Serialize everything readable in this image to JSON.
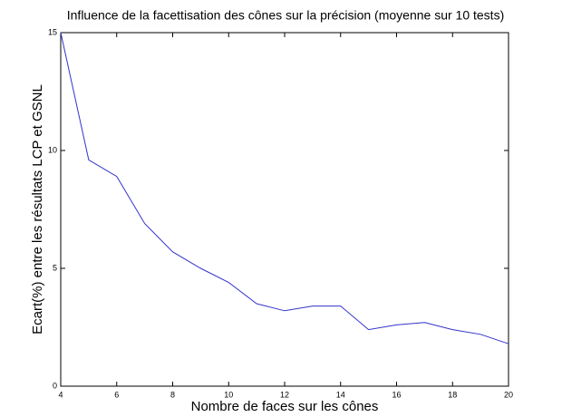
{
  "chart_data": {
    "type": "line",
    "title": "Influence de la facettisation des cônes sur la précision (moyenne sur 10 tests)",
    "xlabel": "Nombre de faces sur les cônes",
    "ylabel": "Ecart(%) entre les résultats LCP et GSNL",
    "x": [
      4,
      5,
      6,
      7,
      8,
      9,
      10,
      11,
      12,
      13,
      14,
      15,
      16,
      17,
      18,
      19,
      20
    ],
    "series": [
      {
        "name": "Ecart",
        "color": "#3333cc",
        "values": [
          15,
          9.6,
          8.9,
          6.9,
          5.7,
          5.0,
          4.4,
          3.5,
          3.2,
          3.4,
          3.4,
          2.4,
          2.6,
          2.7,
          2.4,
          2.2,
          1.8
        ]
      }
    ],
    "xlim": [
      4,
      20
    ],
    "xticks": [
      4,
      6,
      8,
      10,
      12,
      14,
      16,
      18,
      20
    ],
    "ylim": [
      0,
      15
    ],
    "yticks": [
      0,
      5,
      10,
      15
    ]
  }
}
